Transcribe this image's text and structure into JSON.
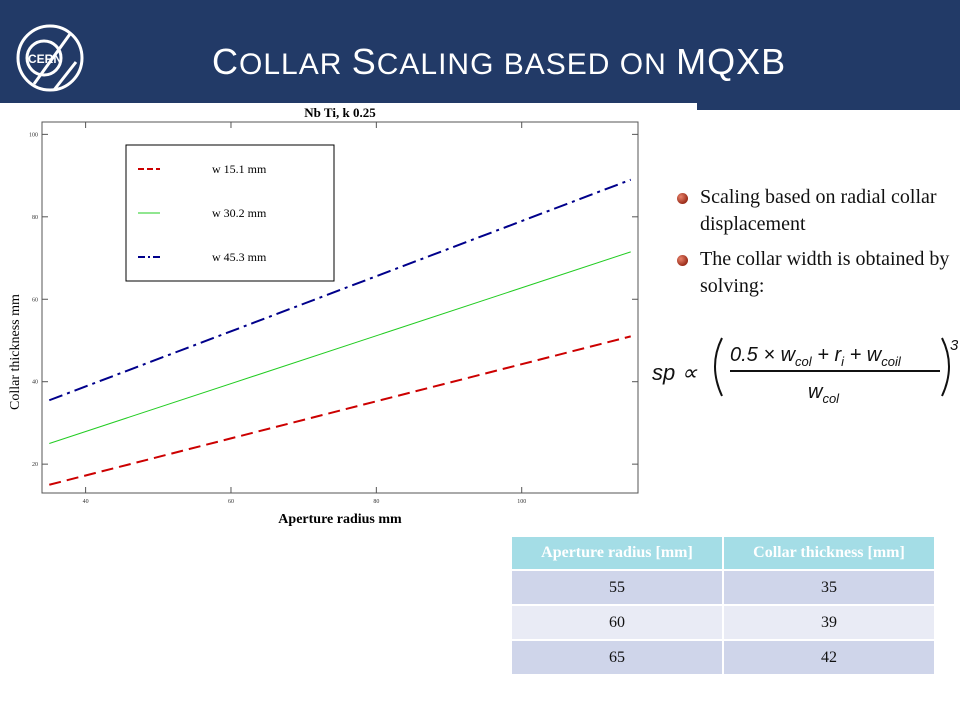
{
  "slide": {
    "title_first": "C",
    "title_rest": "OLLAR ",
    "title_second_first": "S",
    "title_second_rest": "CALING BASED ON ",
    "title_third": "MQXB",
    "logo_text": "CERN"
  },
  "bullets": [
    "Scaling based on radial collar displacement",
    "The collar width is obtained by solving:"
  ],
  "formula": {
    "lhs": "sp ∝",
    "numerator": "0.5 × w",
    "num_sub1": "col",
    "plus1": " + r",
    "num_sub2": "i",
    "plus2": " + w",
    "num_sub3": "coil",
    "denominator": "w",
    "den_sub": "col",
    "exponent": "3"
  },
  "table": {
    "headers": [
      "Aperture  radius [mm]",
      "Collar thickness [mm]"
    ],
    "rows": [
      [
        "55",
        "35"
      ],
      [
        "60",
        "39"
      ],
      [
        "65",
        "42"
      ]
    ]
  },
  "chart_data": {
    "type": "line",
    "title": "Nb  Ti, k  0.25",
    "xlabel": "Aperture radius  mm",
    "ylabel": "Collar thickness  mm",
    "xlim": [
      34,
      116
    ],
    "ylim": [
      13,
      103
    ],
    "xticks": [
      40,
      60,
      80,
      100
    ],
    "yticks": [
      20,
      40,
      60,
      80,
      100
    ],
    "legend_position": "top-left",
    "series": [
      {
        "name": "w 15.1 mm",
        "color": "#cc0000",
        "x": [
          35,
          115
        ],
        "y": [
          15,
          51
        ]
      },
      {
        "name": "w 30.2 mm",
        "color": "#22cc22",
        "x": [
          35,
          115
        ],
        "y": [
          25,
          71.5
        ]
      },
      {
        "name": "w 45.3 mm",
        "color": "#00008b",
        "x": [
          35,
          115
        ],
        "y": [
          35.5,
          89
        ]
      }
    ]
  }
}
